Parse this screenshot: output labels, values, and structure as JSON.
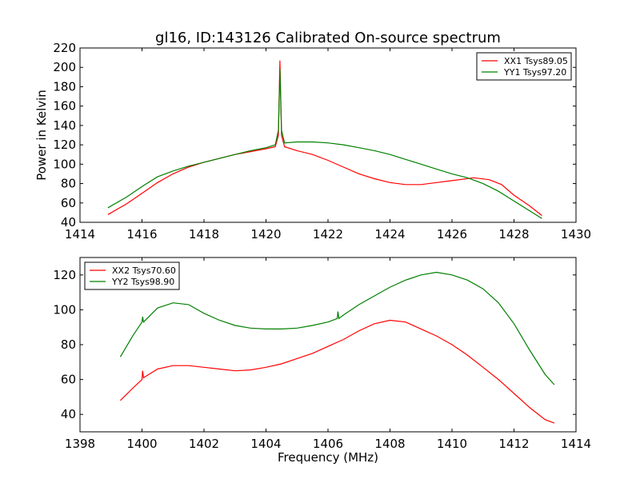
{
  "chart_data": [
    {
      "type": "line",
      "title": "gl16, ID:143126 Calibrated On-source spectrum",
      "xlabel": "",
      "ylabel": "Power in Kelvin",
      "xlim": [
        1414,
        1430
      ],
      "ylim": [
        40,
        220
      ],
      "xticks": [
        1414,
        1416,
        1418,
        1420,
        1422,
        1424,
        1426,
        1428,
        1430
      ],
      "yticks": [
        40,
        60,
        80,
        100,
        120,
        140,
        160,
        180,
        200,
        220
      ],
      "legend_position": "top-right",
      "grid": false,
      "series": [
        {
          "name": "XX1 Tsys89.05",
          "color": "#ff0000",
          "x": [
            1414.9,
            1415.5,
            1416,
            1416.5,
            1417,
            1417.5,
            1418,
            1418.5,
            1419,
            1419.5,
            1420,
            1420.3,
            1420.4,
            1420.45,
            1420.5,
            1420.6,
            1421,
            1421.5,
            1422,
            1422.5,
            1423,
            1423.5,
            1424,
            1424.5,
            1425,
            1425.5,
            1426,
            1426.7,
            1427.2,
            1427.6,
            1428,
            1428.5,
            1428.9
          ],
          "y": [
            48,
            59,
            70,
            81,
            90,
            97,
            102,
            106,
            110,
            113,
            116,
            118,
            130,
            207,
            130,
            118,
            114,
            110,
            104,
            97,
            90,
            85,
            81,
            79,
            79,
            81,
            83,
            86,
            84,
            79,
            68,
            57,
            47
          ]
        },
        {
          "name": "YY1 Tsys97.20",
          "color": "#008000",
          "x": [
            1414.9,
            1415.5,
            1416,
            1416.5,
            1417,
            1417.5,
            1418,
            1418.5,
            1419,
            1419.5,
            1420,
            1420.3,
            1420.4,
            1420.45,
            1420.5,
            1420.6,
            1421,
            1421.5,
            1422,
            1422.5,
            1423,
            1423.5,
            1424,
            1424.5,
            1425,
            1425.5,
            1426,
            1426.5,
            1427,
            1427.5,
            1428,
            1428.5,
            1428.9
          ],
          "y": [
            55,
            66,
            77,
            87,
            93,
            98,
            102,
            106,
            110,
            114,
            117,
            120,
            135,
            198,
            135,
            122,
            123,
            123,
            122,
            120,
            117,
            114,
            110,
            105,
            100,
            95,
            90,
            86,
            80,
            72,
            62,
            52,
            44
          ]
        }
      ]
    },
    {
      "type": "line",
      "title": "",
      "xlabel": "Frequency (MHz)",
      "ylabel": "",
      "xlim": [
        1398,
        1414
      ],
      "ylim": [
        30,
        130
      ],
      "xticks": [
        1398,
        1400,
        1402,
        1404,
        1406,
        1408,
        1410,
        1412,
        1414
      ],
      "yticks": [
        40,
        60,
        80,
        100,
        120
      ],
      "legend_position": "top-left",
      "grid": false,
      "series": [
        {
          "name": "XX2 Tsys70.60",
          "color": "#ff0000",
          "x": [
            1399.3,
            1399.7,
            1400,
            1400.02,
            1400.05,
            1400.5,
            1401,
            1401.5,
            1402,
            1402.5,
            1403,
            1403.5,
            1404,
            1404.5,
            1405,
            1405.5,
            1406,
            1406.5,
            1407,
            1407.5,
            1408,
            1408.5,
            1409,
            1409.5,
            1410,
            1410.5,
            1411,
            1411.5,
            1412,
            1412.5,
            1413,
            1413.3
          ],
          "y": [
            48,
            55,
            60,
            65,
            61,
            66,
            68,
            68,
            67,
            66,
            65,
            65.5,
            67,
            69,
            72,
            75,
            79,
            83,
            88,
            92,
            94,
            93,
            89,
            85,
            80,
            74,
            67,
            60,
            52,
            44,
            37,
            35
          ]
        },
        {
          "name": "YY2 Tsys98.90",
          "color": "#008000",
          "x": [
            1399.3,
            1399.7,
            1400,
            1400.02,
            1400.05,
            1400.5,
            1401,
            1401.5,
            1402,
            1402.5,
            1403,
            1403.5,
            1404,
            1404.5,
            1405,
            1405.5,
            1406,
            1406.3,
            1406.32,
            1406.35,
            1406.5,
            1407,
            1407.5,
            1408,
            1408.5,
            1409,
            1409.5,
            1410,
            1410.5,
            1411,
            1411.5,
            1412,
            1412.5,
            1413,
            1413.3
          ],
          "y": [
            73,
            85,
            93,
            96,
            93,
            101,
            104,
            103,
            98,
            94,
            91,
            89.5,
            89,
            89,
            89.5,
            91,
            93,
            95,
            99,
            95,
            97,
            103,
            108,
            113,
            117,
            120,
            121.5,
            120,
            117,
            112,
            104,
            92,
            77,
            63,
            57
          ]
        }
      ]
    }
  ]
}
